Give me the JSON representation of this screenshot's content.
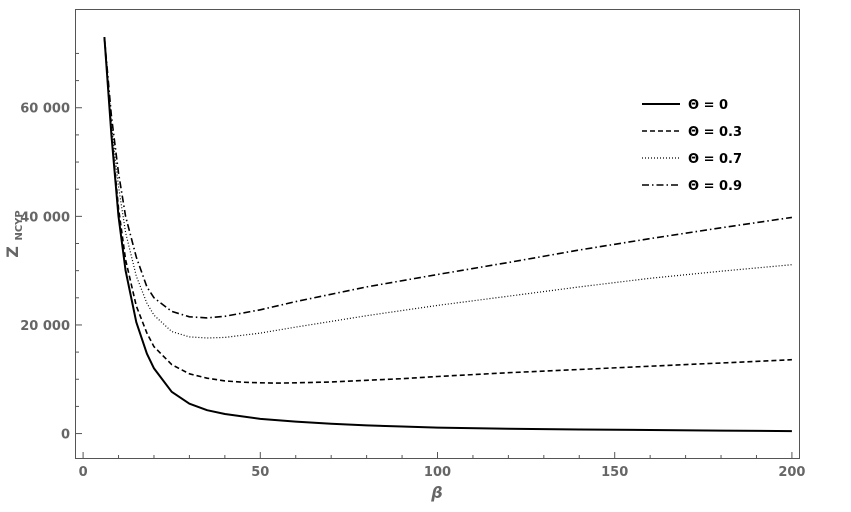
{
  "chart_data": {
    "type": "line",
    "title": "",
    "xlabel": "β",
    "ylabel": "Z",
    "ylabel_subscript": "NCYP",
    "xlim": [
      -2,
      202
    ],
    "ylim": [
      -4500,
      78000
    ],
    "xticks": [
      0,
      50,
      100,
      150,
      200
    ],
    "xtick_labels": [
      "0",
      "50",
      "100",
      "150",
      "200"
    ],
    "yticks": [
      0,
      20000,
      40000,
      60000
    ],
    "ytick_labels": [
      "0",
      "20 000",
      "40 000",
      "60 000"
    ],
    "grid": false,
    "frame": true,
    "legend_position": "top-right",
    "colors": {
      "line": "#000000",
      "frame": "#555555",
      "ticks_text": "#666666"
    },
    "series": [
      {
        "name": "Θ = 0",
        "style": "solid",
        "x": [
          6,
          8,
          10,
          12,
          15,
          18,
          20,
          25,
          30,
          35,
          40,
          50,
          60,
          70,
          80,
          90,
          100,
          120,
          140,
          160,
          180,
          200
        ],
        "y": [
          73000,
          55000,
          40000,
          30000,
          20500,
          14700,
          12000,
          7700,
          5500,
          4300,
          3600,
          2700,
          2200,
          1800,
          1500,
          1300,
          1100,
          900,
          750,
          650,
          550,
          450
        ]
      },
      {
        "name": "Θ = 0.3",
        "style": "dashed",
        "x": [
          6,
          8,
          10,
          12,
          15,
          18,
          20,
          25,
          30,
          35,
          40,
          45,
          50,
          55,
          60,
          70,
          80,
          90,
          100,
          120,
          140,
          160,
          180,
          200
        ],
        "y": [
          73000,
          55500,
          41500,
          32000,
          23500,
          18500,
          16000,
          12700,
          11000,
          10200,
          9700,
          9450,
          9350,
          9300,
          9350,
          9500,
          9800,
          10100,
          10500,
          11200,
          11800,
          12400,
          13000,
          13600
        ]
      },
      {
        "name": "Θ = 0.7",
        "style": "dotted",
        "x": [
          6,
          8,
          10,
          12,
          15,
          18,
          20,
          25,
          30,
          35,
          40,
          50,
          60,
          80,
          100,
          120,
          140,
          160,
          180,
          200
        ],
        "y": [
          73000,
          57000,
          45500,
          37000,
          29000,
          24000,
          21800,
          18800,
          17800,
          17600,
          17700,
          18500,
          19600,
          21700,
          23600,
          25300,
          27000,
          28600,
          29900,
          31100
        ]
      },
      {
        "name": "Θ = 0.9",
        "style": "dashdot",
        "x": [
          6,
          8,
          10,
          12,
          15,
          18,
          20,
          25,
          30,
          35,
          40,
          50,
          60,
          80,
          100,
          120,
          140,
          160,
          180,
          200
        ],
        "y": [
          73000,
          58500,
          48000,
          40000,
          32500,
          27000,
          25000,
          22500,
          21500,
          21300,
          21600,
          22800,
          24300,
          27000,
          29300,
          31500,
          33800,
          35900,
          37900,
          39800
        ]
      }
    ]
  }
}
